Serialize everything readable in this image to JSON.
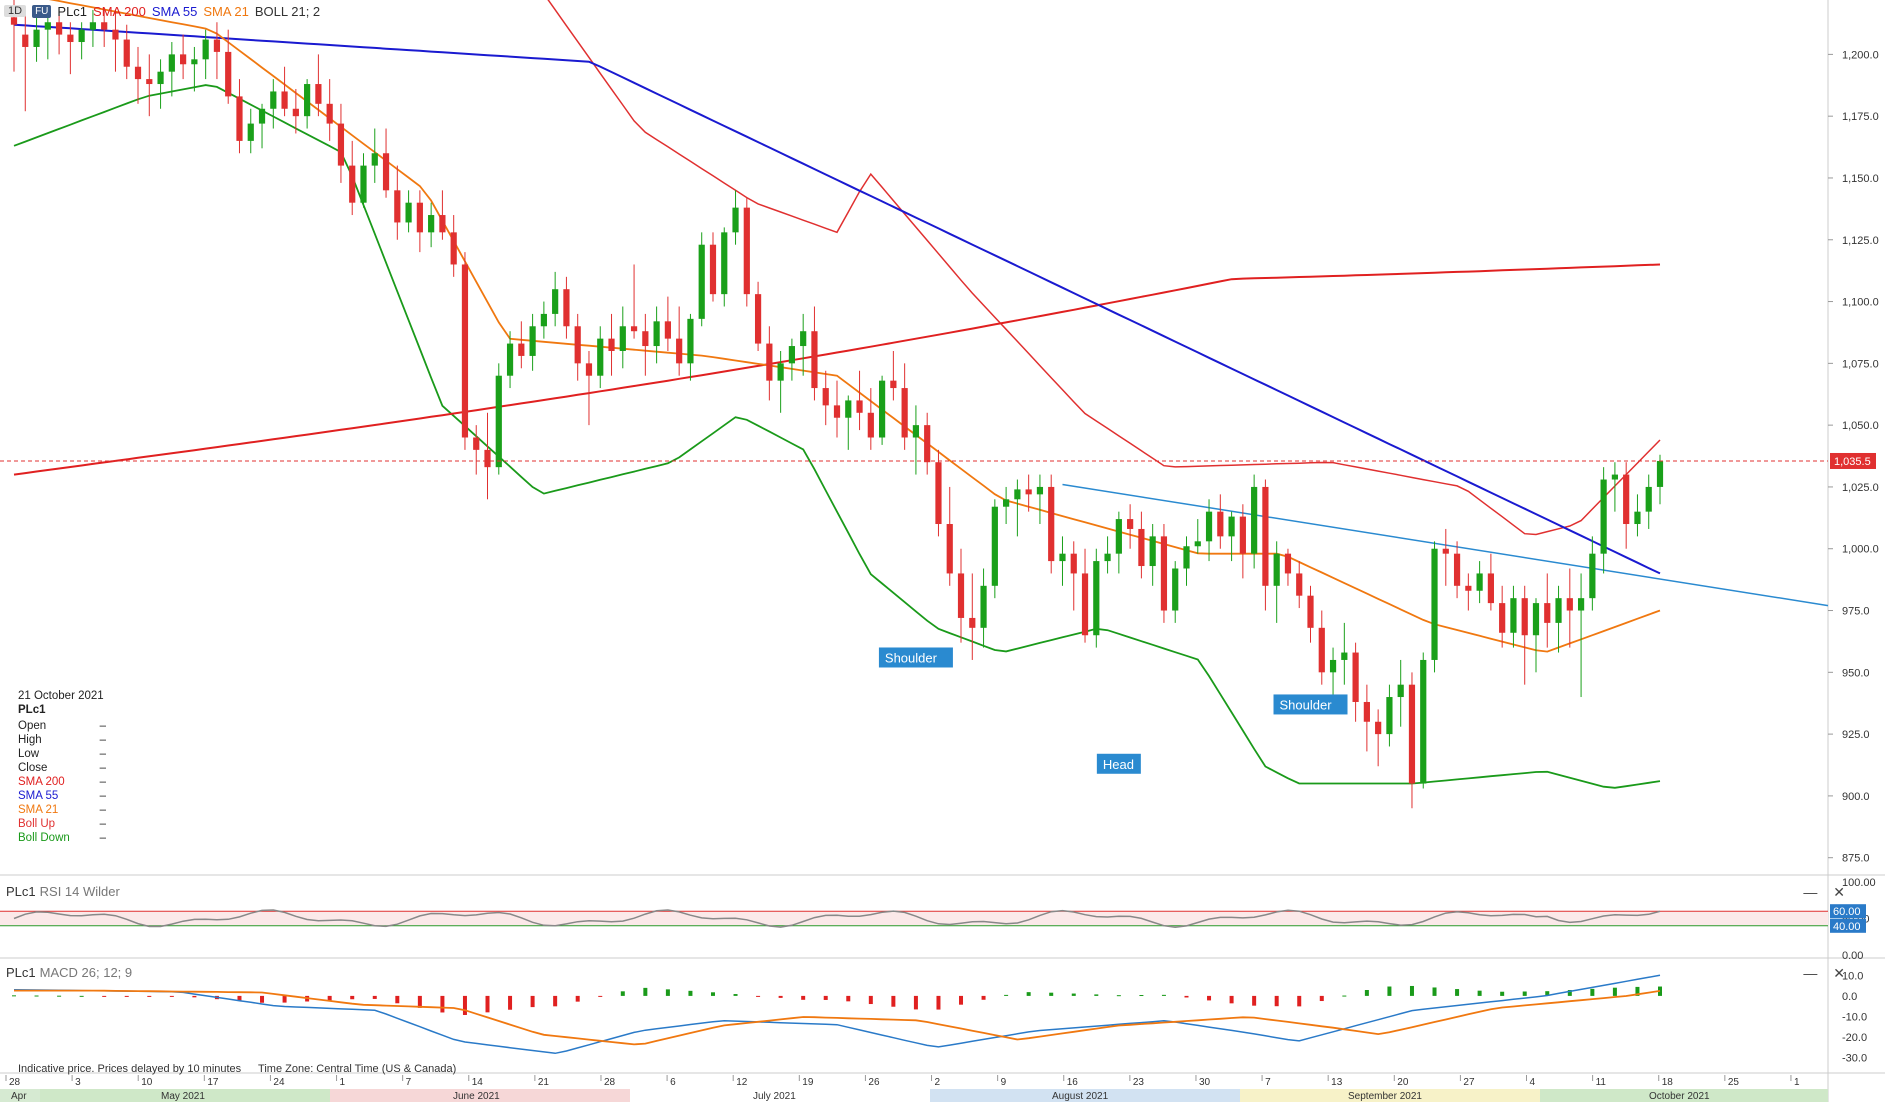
{
  "header": {
    "timeframe": "1D",
    "source_badge": "FU",
    "symbol": "PLc1",
    "indicators": [
      {
        "label": "SMA 200",
        "color": "#e02020"
      },
      {
        "label": "SMA 55",
        "color": "#1a1ad0"
      },
      {
        "label": "SMA 21",
        "color": "#f07810"
      },
      {
        "label": "BOLL 21; 2",
        "color": "#333333"
      }
    ]
  },
  "info_panel": {
    "date": "21 October 2021",
    "symbol": "PLc1",
    "rows": [
      {
        "label": "Open",
        "value": "–",
        "color": "#222222"
      },
      {
        "label": "High",
        "value": "–",
        "color": "#222222"
      },
      {
        "label": "Low",
        "value": "–",
        "color": "#222222"
      },
      {
        "label": "Close",
        "value": "–",
        "color": "#222222"
      },
      {
        "label": "SMA 200",
        "value": "–",
        "color": "#e02020"
      },
      {
        "label": "SMA 55",
        "value": "–",
        "color": "#1a1ad0"
      },
      {
        "label": "SMA 21",
        "value": "–",
        "color": "#f07810"
      },
      {
        "label": "Boll Up",
        "value": "–",
        "color": "#e03030"
      },
      {
        "label": "Boll Down",
        "value": "–",
        "color": "#1a9a1a"
      }
    ]
  },
  "rsi_pane": {
    "label": "PLc1",
    "sub": "RSI 14 Wilder",
    "levels": [
      "60.00",
      "40.00"
    ],
    "ticks": [
      "100.00",
      "50.00",
      "0.00"
    ]
  },
  "macd_pane": {
    "label": "PLc1",
    "sub": "MACD 26; 12; 9",
    "ticks": [
      "10.0",
      "0.0",
      "-10.0",
      "-20.0",
      "-30.0"
    ]
  },
  "footer": {
    "note": "Indicative price. Prices delayed by 10 minutes",
    "timezone": "Time Zone: Central Time (US & Canada)"
  },
  "controls": {
    "minimize": "—",
    "close": "✕"
  },
  "chart_data": {
    "type": "candlestick",
    "last_price_label": "1,035.5",
    "last_price": 1035.5,
    "y_ticks": [
      1200,
      1175,
      1150,
      1125,
      1100,
      1075,
      1050,
      1025,
      1000,
      975,
      950,
      925,
      900,
      875
    ],
    "y_tick_labels": [
      "1,200.0",
      "1,175.0",
      "1,150.0",
      "1,125.0",
      "1,100.0",
      "1,075.0",
      "1,050.0",
      "1,025.0",
      "1,000.0",
      "975.0",
      "950.0",
      "925.0",
      "900.0",
      "875.0"
    ],
    "ylim": [
      868,
      1222
    ],
    "x_day_labels": [
      "28",
      "3",
      "10",
      "17",
      "24",
      "1",
      "7",
      "14",
      "21",
      "28",
      "6",
      "12",
      "19",
      "26",
      "2",
      "9",
      "16",
      "23",
      "30",
      "7",
      "13",
      "20",
      "27",
      "4",
      "11",
      "18",
      "25",
      "1"
    ],
    "x_month_labels": [
      {
        "label": "Apr",
        "color": "#d6ead2"
      },
      {
        "label": "May 2021",
        "color": "#cfe8c8"
      },
      {
        "label": "June 2021",
        "color": "#f6d7d7"
      },
      {
        "label": "July 2021",
        "color": "#ffffff"
      },
      {
        "label": "August 2021",
        "color": "#d2e2f2"
      },
      {
        "label": "September 2021",
        "color": "#f7f2c8"
      },
      {
        "label": "October 2021",
        "color": "#cfe8c8"
      }
    ],
    "annotations": [
      {
        "label": "Shoulder",
        "value": 956
      },
      {
        "label": "Head",
        "value": 913
      },
      {
        "label": "Shoulder",
        "value": 937
      }
    ],
    "trendline": {
      "from": 1026,
      "to": 977
    },
    "candles_ohlc": [
      [
        1215,
        1222,
        1193,
        1212
      ],
      [
        1208,
        1218,
        1177,
        1203
      ],
      [
        1203,
        1218,
        1197,
        1210
      ],
      [
        1210,
        1218,
        1198,
        1213
      ],
      [
        1213,
        1216,
        1200,
        1208
      ],
      [
        1208,
        1213,
        1192,
        1205
      ],
      [
        1205,
        1213,
        1198,
        1210
      ],
      [
        1210,
        1218,
        1203,
        1213
      ],
      [
        1213,
        1218,
        1203,
        1210
      ],
      [
        1210,
        1218,
        1193,
        1206
      ],
      [
        1206,
        1212,
        1190,
        1195
      ],
      [
        1195,
        1203,
        1180,
        1190
      ],
      [
        1190,
        1200,
        1175,
        1188
      ],
      [
        1188,
        1198,
        1178,
        1193
      ],
      [
        1193,
        1205,
        1183,
        1200
      ],
      [
        1200,
        1208,
        1190,
        1196
      ],
      [
        1196,
        1203,
        1185,
        1198
      ],
      [
        1198,
        1210,
        1190,
        1206
      ],
      [
        1206,
        1213,
        1190,
        1201
      ],
      [
        1201,
        1210,
        1180,
        1183
      ],
      [
        1183,
        1190,
        1160,
        1165
      ],
      [
        1165,
        1178,
        1160,
        1172
      ],
      [
        1172,
        1180,
        1162,
        1178
      ],
      [
        1178,
        1190,
        1170,
        1185
      ],
      [
        1185,
        1195,
        1175,
        1178
      ],
      [
        1178,
        1186,
        1168,
        1175
      ],
      [
        1175,
        1190,
        1170,
        1188
      ],
      [
        1188,
        1200,
        1175,
        1180
      ],
      [
        1180,
        1190,
        1165,
        1172
      ],
      [
        1172,
        1180,
        1148,
        1155
      ],
      [
        1155,
        1165,
        1135,
        1140
      ],
      [
        1140,
        1160,
        1138,
        1155
      ],
      [
        1155,
        1170,
        1148,
        1160
      ],
      [
        1160,
        1170,
        1142,
        1145
      ],
      [
        1145,
        1155,
        1125,
        1132
      ],
      [
        1132,
        1145,
        1128,
        1140
      ],
      [
        1140,
        1145,
        1120,
        1128
      ],
      [
        1128,
        1140,
        1122,
        1135
      ],
      [
        1135,
        1145,
        1125,
        1128
      ],
      [
        1128,
        1135,
        1110,
        1115
      ],
      [
        1115,
        1120,
        1040,
        1045
      ],
      [
        1045,
        1050,
        1030,
        1040
      ],
      [
        1040,
        1055,
        1020,
        1033
      ],
      [
        1033,
        1075,
        1030,
        1070
      ],
      [
        1070,
        1088,
        1065,
        1083
      ],
      [
        1083,
        1092,
        1073,
        1078
      ],
      [
        1078,
        1095,
        1072,
        1090
      ],
      [
        1090,
        1100,
        1085,
        1095
      ],
      [
        1095,
        1112,
        1090,
        1105
      ],
      [
        1105,
        1110,
        1085,
        1090
      ],
      [
        1090,
        1095,
        1068,
        1075
      ],
      [
        1075,
        1080,
        1050,
        1070
      ],
      [
        1070,
        1090,
        1065,
        1085
      ],
      [
        1085,
        1095,
        1070,
        1080
      ],
      [
        1080,
        1098,
        1073,
        1090
      ],
      [
        1090,
        1115,
        1085,
        1088
      ],
      [
        1088,
        1095,
        1070,
        1082
      ],
      [
        1082,
        1098,
        1075,
        1092
      ],
      [
        1092,
        1102,
        1080,
        1085
      ],
      [
        1085,
        1098,
        1070,
        1075
      ],
      [
        1075,
        1095,
        1068,
        1093
      ],
      [
        1093,
        1128,
        1090,
        1123
      ],
      [
        1123,
        1128,
        1100,
        1103
      ],
      [
        1103,
        1130,
        1098,
        1128
      ],
      [
        1128,
        1145,
        1123,
        1138
      ],
      [
        1138,
        1142,
        1098,
        1103
      ],
      [
        1103,
        1108,
        1080,
        1083
      ],
      [
        1083,
        1090,
        1060,
        1068
      ],
      [
        1068,
        1080,
        1055,
        1075
      ],
      [
        1075,
        1085,
        1068,
        1082
      ],
      [
        1082,
        1095,
        1070,
        1088
      ],
      [
        1088,
        1098,
        1060,
        1065
      ],
      [
        1065,
        1072,
        1050,
        1058
      ],
      [
        1058,
        1068,
        1045,
        1053
      ],
      [
        1053,
        1062,
        1040,
        1060
      ],
      [
        1060,
        1072,
        1048,
        1055
      ],
      [
        1055,
        1065,
        1040,
        1045
      ],
      [
        1045,
        1070,
        1042,
        1068
      ],
      [
        1068,
        1080,
        1060,
        1065
      ],
      [
        1065,
        1075,
        1040,
        1045
      ],
      [
        1045,
        1058,
        1030,
        1050
      ],
      [
        1050,
        1055,
        1030,
        1035
      ],
      [
        1035,
        1040,
        1005,
        1010
      ],
      [
        1010,
        1025,
        985,
        990
      ],
      [
        990,
        1000,
        962,
        972
      ],
      [
        972,
        990,
        955,
        968
      ],
      [
        968,
        992,
        960,
        985
      ],
      [
        985,
        1020,
        980,
        1017
      ],
      [
        1017,
        1025,
        1010,
        1020
      ],
      [
        1020,
        1028,
        1005,
        1024
      ],
      [
        1024,
        1030,
        1015,
        1022
      ],
      [
        1022,
        1030,
        1010,
        1025
      ],
      [
        1025,
        1030,
        990,
        995
      ],
      [
        995,
        1005,
        985,
        998
      ],
      [
        998,
        1003,
        975,
        990
      ],
      [
        990,
        1000,
        962,
        965
      ],
      [
        965,
        1000,
        960,
        995
      ],
      [
        995,
        1005,
        990,
        998
      ],
      [
        998,
        1015,
        990,
        1012
      ],
      [
        1012,
        1018,
        1000,
        1008
      ],
      [
        1008,
        1015,
        988,
        993
      ],
      [
        993,
        1010,
        985,
        1005
      ],
      [
        1005,
        1010,
        970,
        975
      ],
      [
        975,
        995,
        970,
        992
      ],
      [
        992,
        1005,
        985,
        1001
      ],
      [
        1001,
        1012,
        998,
        1003
      ],
      [
        1003,
        1020,
        995,
        1015
      ],
      [
        1015,
        1022,
        1000,
        1005
      ],
      [
        1005,
        1015,
        995,
        1013
      ],
      [
        1013,
        1018,
        988,
        998
      ],
      [
        998,
        1030,
        992,
        1025
      ],
      [
        1025,
        1028,
        975,
        985
      ],
      [
        985,
        1003,
        970,
        998
      ],
      [
        998,
        1000,
        985,
        990
      ],
      [
        990,
        995,
        976,
        981
      ],
      [
        981,
        985,
        962,
        968
      ],
      [
        968,
        975,
        945,
        950
      ],
      [
        950,
        960,
        940,
        955
      ],
      [
        955,
        970,
        945,
        958
      ],
      [
        958,
        962,
        930,
        938
      ],
      [
        938,
        945,
        918,
        930
      ],
      [
        930,
        935,
        912,
        925
      ],
      [
        925,
        945,
        920,
        940
      ],
      [
        940,
        955,
        928,
        945
      ],
      [
        945,
        950,
        895,
        905
      ],
      [
        905,
        958,
        903,
        955
      ],
      [
        955,
        1003,
        950,
        1000
      ],
      [
        1000,
        1008,
        985,
        998
      ],
      [
        998,
        1003,
        980,
        985
      ],
      [
        985,
        990,
        975,
        983
      ],
      [
        983,
        995,
        978,
        990
      ],
      [
        990,
        998,
        975,
        978
      ],
      [
        978,
        985,
        960,
        966
      ],
      [
        966,
        985,
        960,
        980
      ],
      [
        980,
        985,
        945,
        965
      ],
      [
        965,
        980,
        950,
        978
      ],
      [
        978,
        990,
        960,
        970
      ],
      [
        970,
        985,
        958,
        980
      ],
      [
        980,
        992,
        960,
        975
      ],
      [
        975,
        990,
        940,
        980
      ],
      [
        980,
        1005,
        975,
        998
      ],
      [
        998,
        1033,
        990,
        1028
      ],
      [
        1028,
        1035,
        1015,
        1030
      ],
      [
        1030,
        1035,
        1000,
        1010
      ],
      [
        1010,
        1022,
        1005,
        1015
      ],
      [
        1015,
        1030,
        1008,
        1025
      ],
      [
        1025,
        1038,
        1018,
        1035.5
      ]
    ],
    "series": [
      {
        "name": "SMA 200",
        "color": "#e02020",
        "start": 1030.0,
        "end": 1115.0
      },
      {
        "name": "SMA 55",
        "color": "#1a1ad0",
        "start": 1212,
        "end": 990
      },
      {
        "name": "SMA 21",
        "color": "#f07810",
        "start": 1225,
        "end": 975
      },
      {
        "name": "Boll Up",
        "color": "#e03030",
        "start": 1270,
        "end": 1044
      },
      {
        "name": "Boll Down",
        "color": "#1a9a1a",
        "start": 1163,
        "end": 906
      }
    ],
    "rsi": {
      "color": "#888888",
      "overbought_color": "#e03030",
      "oversold_color": "#2a9a2a",
      "overbought": 60,
      "oversold": 40,
      "ylim": [
        0,
        100
      ]
    },
    "macd": {
      "ylim": [
        -35,
        15
      ],
      "line_color": "#2a7ac8",
      "signal_color": "#f07810",
      "hist_pos": "#1a9a1a",
      "hist_neg": "#e02020"
    }
  }
}
